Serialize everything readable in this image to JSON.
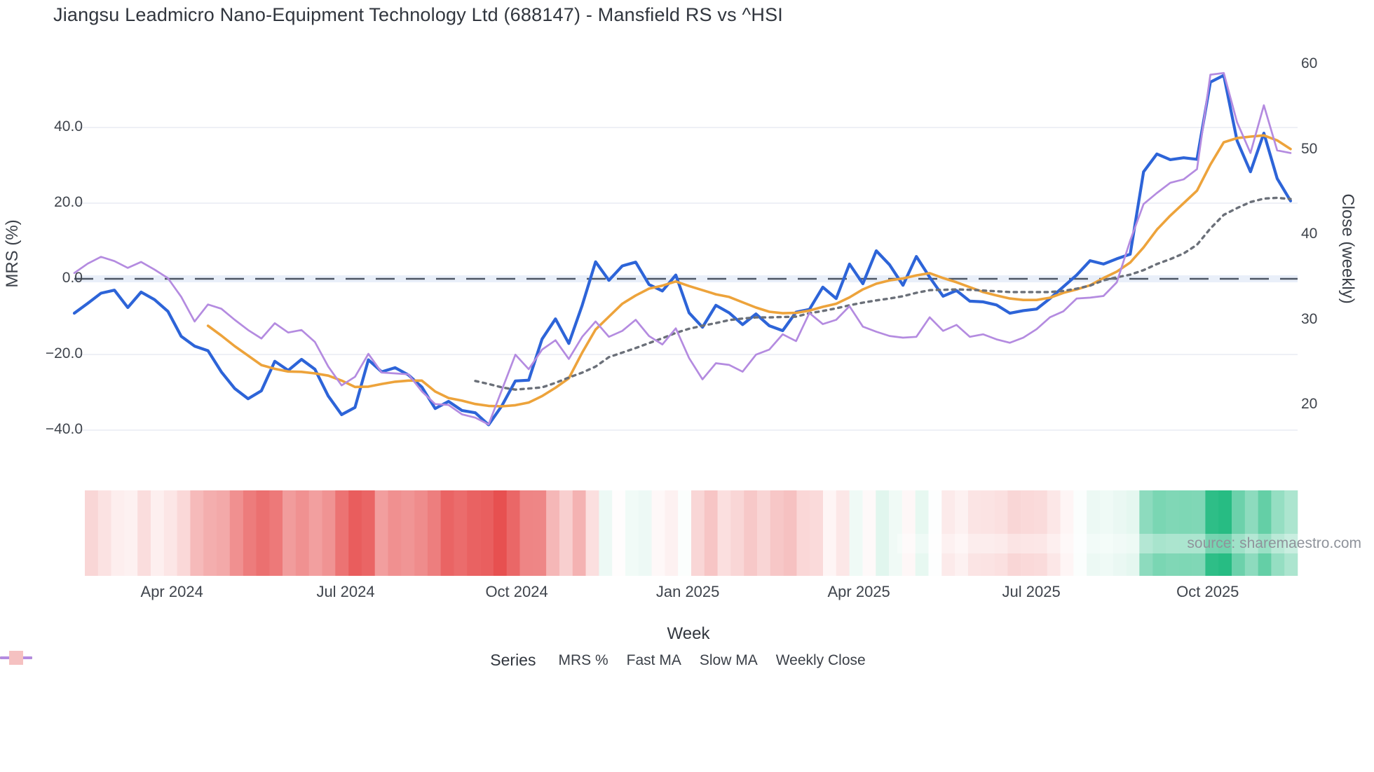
{
  "title": "Jiangsu Leadmicro Nano-Equipment Technology Ltd (688147) - Mansfield RS vs ^HSI",
  "source_text": "source: sharemaestro.com",
  "axes": {
    "left": {
      "title": "MRS (%)",
      "ticks": [
        {
          "label": "40.0",
          "value": 40
        },
        {
          "label": "20.0",
          "value": 20
        },
        {
          "label": "0.0",
          "value": 0
        },
        {
          "label": "−20.0",
          "value": -20
        },
        {
          "label": "−40.0",
          "value": -40
        }
      ]
    },
    "right": {
      "title": "Close (weekly)",
      "ticks": [
        {
          "label": "60",
          "value": 60
        },
        {
          "label": "50",
          "value": 50
        },
        {
          "label": "40",
          "value": 40
        },
        {
          "label": "30",
          "value": 30
        },
        {
          "label": "20",
          "value": 20
        }
      ]
    },
    "x": {
      "title": "Week",
      "ticks": [
        {
          "label": "Apr 2024",
          "week": 7.3
        },
        {
          "label": "Jul 2024",
          "week": 20.3
        },
        {
          "label": "Oct 2024",
          "week": 33.1
        },
        {
          "label": "Jan 2025",
          "week": 45.9
        },
        {
          "label": "Apr 2025",
          "week": 58.7
        },
        {
          "label": "Jul 2025",
          "week": 71.6
        },
        {
          "label": "Oct 2025",
          "week": 84.8
        }
      ]
    }
  },
  "legend": {
    "title": "Series",
    "items": [
      {
        "label": "MRS %",
        "swatch": "line",
        "color": "#2d64d8"
      },
      {
        "label": "Fast MA",
        "swatch": "line",
        "color": "#eda33b"
      },
      {
        "label": "Slow MA",
        "swatch": "dots",
        "color": "#6b7079"
      },
      {
        "label": "Weekly Close",
        "swatch": "line",
        "color": "#b48be0"
      },
      {
        "label": "",
        "swatch": "square",
        "color": "#f5c1c1"
      }
    ]
  },
  "colors": {
    "mrs": "#2d64d8",
    "fast_ma": "#eda33b",
    "slow_ma": "#6b7079",
    "weekly_close": "#b48be0",
    "zero_line": "#4d5765",
    "zero_band": "#e9eff9",
    "grid": "#e9ebf4",
    "heat_negative": "#e64a4a",
    "heat_positive": "#22ba80",
    "source_text_color": "#8f939b"
  },
  "chart_data": {
    "type": "line",
    "title": "Jiangsu Leadmicro Nano-Equipment Technology Ltd (688147) - Mansfield RS vs ^HSI",
    "xlabel": "Week",
    "ylabel_left": "MRS (%)",
    "ylabel_right": "Close (weekly)",
    "x_unit": "weekly, Feb 2024 - Nov 2025",
    "n_points": 92,
    "ylim_left": [
      -40,
      40
    ],
    "ylim_right": [
      20,
      60
    ],
    "grid": "horizontal-left-ticks-only",
    "legend_position": "bottom-center",
    "zero_reference_line": 0,
    "series": [
      {
        "name": "MRS %",
        "axis": "left",
        "style": "solid",
        "width": 4.2,
        "color": "#2d64d8",
        "values": [
          -9.1,
          -6.5,
          -3.8,
          -3,
          -7.6,
          -3.5,
          -5.5,
          -8.6,
          -15.2,
          -17.8,
          -19,
          -24.6,
          -29,
          -31.7,
          -29.6,
          -21.8,
          -24.2,
          -21.3,
          -23.9,
          -31,
          -35.9,
          -34,
          -21.4,
          -24.6,
          -23.5,
          -25.4,
          -28.6,
          -34.3,
          -32.4,
          -34.8,
          -35.4,
          -38.6,
          -33.5,
          -27,
          -26.8,
          -15.9,
          -10.6,
          -17.1,
          -7,
          4.5,
          -0.4,
          3.4,
          4.4,
          -1.5,
          -3.2,
          1,
          -9,
          -12.8,
          -7,
          -9,
          -12.1,
          -9.3,
          -12.4,
          -13.7,
          -8.8,
          -8.1,
          -2.2,
          -5.2,
          3.9,
          -1.3,
          7.4,
          3.7,
          -1.7,
          5.9,
          0.4,
          -4.6,
          -3.1,
          -5.9,
          -6.1,
          -6.9,
          -9.1,
          -8.4,
          -8,
          -5.2,
          -2.1,
          1,
          4.8,
          3.9,
          5.3,
          6.5,
          28.3,
          33,
          31.5,
          32,
          31.6,
          52,
          53.8,
          36.5,
          28.3,
          38.5,
          26.5,
          20.6
        ]
      },
      {
        "name": "Fast MA",
        "axis": "left",
        "style": "solid",
        "width": 3.6,
        "color": "#eda33b",
        "values": [
          null,
          null,
          null,
          null,
          null,
          null,
          null,
          null,
          null,
          null,
          -12.4,
          -15,
          -17.8,
          -20.3,
          -22.8,
          -23.8,
          -24.5,
          -24.6,
          -25,
          -25.6,
          -26.9,
          -28.6,
          -28.5,
          -27.8,
          -27.2,
          -26.9,
          -26.9,
          -29.8,
          -31.5,
          -32.2,
          -33.1,
          -33.6,
          -33.7,
          -33.4,
          -32.7,
          -31,
          -28.8,
          -26.3,
          -19.5,
          -13.4,
          -10,
          -6.6,
          -4.4,
          -2.6,
          -1.8,
          -0.7,
          -1.9,
          -3,
          -4.1,
          -4.8,
          -6.2,
          -7.6,
          -8.7,
          -9.1,
          -9,
          -8.4,
          -7.4,
          -6.6,
          -4.9,
          -2.8,
          -1.3,
          -0.4,
          0.1,
          0.9,
          1.5,
          0.2,
          -0.9,
          -2.2,
          -3.5,
          -4.4,
          -5.2,
          -5.6,
          -5.6,
          -5,
          -3.7,
          -2.8,
          -1.7,
          0.2,
          1.9,
          4.3,
          8.3,
          13,
          16.7,
          20,
          23.3,
          30.2,
          36.1,
          37.2,
          37.6,
          37.9,
          36.6,
          34.3
        ]
      },
      {
        "name": "Slow MA",
        "axis": "left",
        "style": "dotted",
        "width": 3.4,
        "color": "#6b7079",
        "values": [
          null,
          null,
          null,
          null,
          null,
          null,
          null,
          null,
          null,
          null,
          null,
          null,
          null,
          null,
          null,
          null,
          null,
          null,
          null,
          null,
          null,
          null,
          null,
          null,
          null,
          null,
          null,
          null,
          null,
          null,
          -27,
          -27.8,
          -28.7,
          -29.3,
          -29,
          -28.7,
          -27.5,
          -26.1,
          -24.8,
          -23.2,
          -20.7,
          -19.5,
          -18.3,
          -17,
          -15.7,
          -14.3,
          -13.2,
          -12.4,
          -11.7,
          -10.9,
          -10.5,
          -10.2,
          -10.2,
          -10.1,
          -10,
          -9.1,
          -8.5,
          -7.8,
          -7,
          -6.3,
          -5.7,
          -5.2,
          -4.6,
          -3.7,
          -3,
          -2.9,
          -2.8,
          -2.9,
          -3.1,
          -3.3,
          -3.5,
          -3.5,
          -3.5,
          -3.5,
          -3.2,
          -2.6,
          -1.8,
          -0.4,
          0.4,
          1.1,
          2.3,
          3.9,
          5.2,
          6.7,
          9,
          13.3,
          16.9,
          18.7,
          20.3,
          21.2,
          21.4,
          21.1
        ]
      },
      {
        "name": "Weekly Close",
        "axis": "right",
        "style": "solid",
        "width": 2.7,
        "color": "#b48be0",
        "values": [
          35.5,
          36.6,
          37.4,
          36.9,
          36.1,
          36.8,
          35.9,
          34.9,
          32.7,
          29.8,
          31.8,
          31.3,
          30,
          28.8,
          27.8,
          29.6,
          28.5,
          28.8,
          27.4,
          24.5,
          22.3,
          23.3,
          26,
          23.8,
          23.7,
          23.6,
          21.6,
          20.1,
          20,
          18.9,
          18.5,
          17.7,
          21.8,
          25.9,
          24.2,
          26.5,
          27.6,
          25.4,
          28,
          29.8,
          28,
          28.7,
          30,
          28.1,
          27.1,
          29,
          25.5,
          23,
          24.9,
          24.7,
          23.9,
          25.9,
          26.5,
          28.3,
          27.5,
          30.8,
          29.5,
          30,
          31.6,
          29.2,
          28.6,
          28.1,
          27.9,
          28,
          30.3,
          28.7,
          29.4,
          28,
          28.3,
          27.7,
          27.3,
          27.9,
          28.9,
          30.3,
          31,
          32.5,
          32.6,
          32.8,
          34.4,
          39.3,
          43.6,
          44.9,
          46.1,
          46.5,
          47.7,
          58.8,
          59,
          53.2,
          49.6,
          55.2,
          49.9,
          49.6
        ]
      }
    ],
    "heatmap_strip": {
      "encodes": "MRS % sign and magnitude per week",
      "negative_color": "#e64a4a",
      "positive_color": "#22ba80",
      "negative_full_scale": 40,
      "positive_full_scale": 55
    }
  }
}
